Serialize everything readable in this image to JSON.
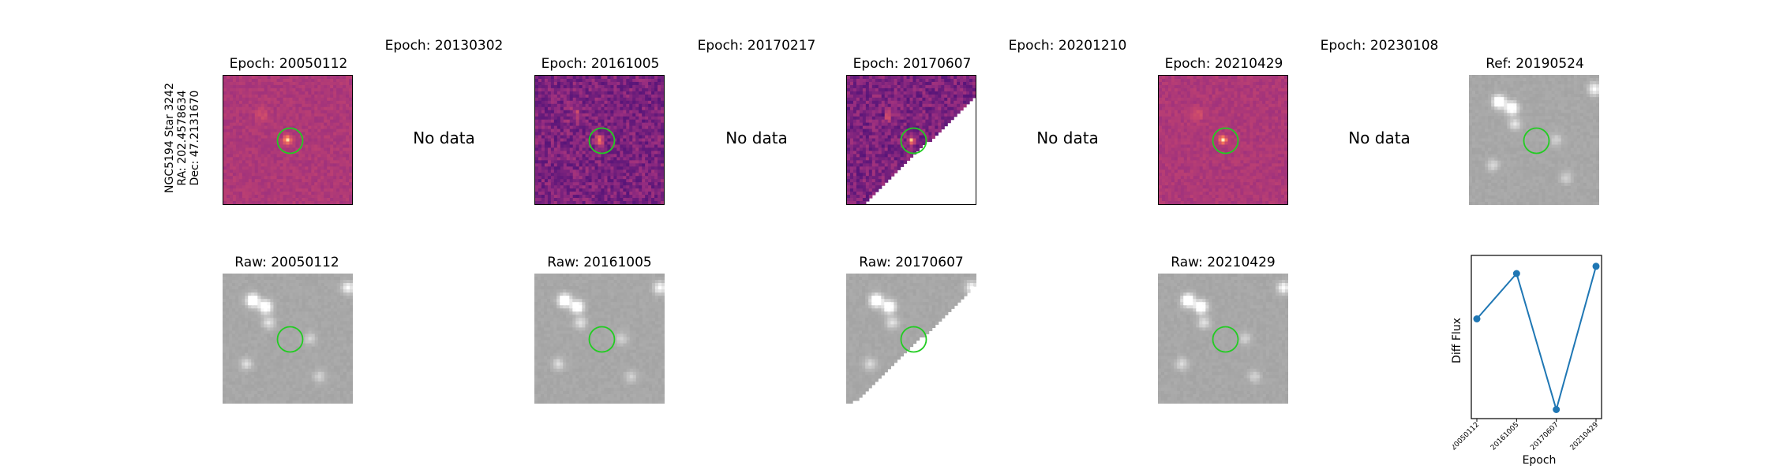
{
  "target_label": {
    "name": "NGC5194 Star 3242",
    "ra": "RA: 202.4578634",
    "dec": "Dec: 47.2131670"
  },
  "top_row": [
    {
      "title": "Epoch: 20050112",
      "has_data": true
    },
    {
      "title": "Epoch: 20130302",
      "has_data": false,
      "no_data_text": "No data"
    },
    {
      "title": "Epoch: 20161005",
      "has_data": true
    },
    {
      "title": "Epoch: 20170217",
      "has_data": false,
      "no_data_text": "No data"
    },
    {
      "title": "Epoch: 20170607",
      "has_data": true
    },
    {
      "title": "Epoch: 20201210",
      "has_data": false,
      "no_data_text": "No data"
    },
    {
      "title": "Epoch: 20210429",
      "has_data": true
    },
    {
      "title": "Epoch: 20230108",
      "has_data": false,
      "no_data_text": "No data"
    },
    {
      "title": "Ref: 20190524",
      "has_data": true
    }
  ],
  "bottom_row": [
    {
      "title": "Raw: 20050112"
    },
    {
      "title": "Raw: 20161005"
    },
    {
      "title": "Raw: 20170607"
    },
    {
      "title": "Raw: 20210429"
    }
  ],
  "colors": {
    "circle": "#22cc22",
    "line": "#1f77b4",
    "diff_base": "#b84878",
    "raw_base": "#808080"
  },
  "chart_data": {
    "type": "line",
    "x": [
      "20050112",
      "20161005",
      "20170607",
      "20210429"
    ],
    "y": [
      0.55,
      0.8,
      0.05,
      0.84
    ],
    "xlabel": "Epoch",
    "ylabel": "Diff Flux",
    "yticks": "none",
    "grid": false
  }
}
